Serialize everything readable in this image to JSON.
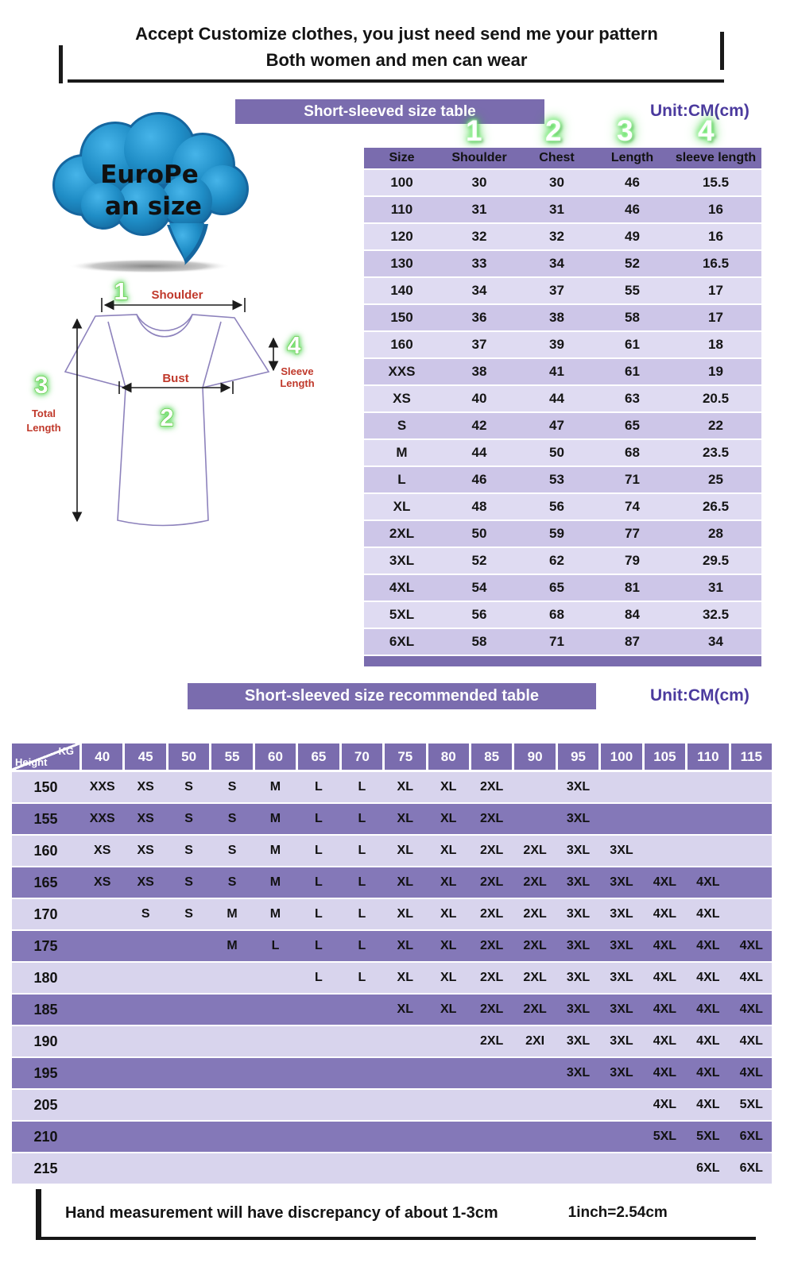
{
  "colors": {
    "purple": "#7a6cae",
    "row_light": "#dfdbf2",
    "row_mid": "#cdc6e8",
    "rec_light": "#d8d4ed",
    "rec_dark": "#8478b8",
    "unit_text": "#4b3a9e",
    "label_red": "#c0392b",
    "cloud_blue": "#1f8dc6"
  },
  "header": {
    "line1": "Accept Customize clothes, you just need send me your pattern",
    "line2": "Both women and men can wear"
  },
  "cloud": {
    "line1": "EuroPe",
    "line2": "an  size"
  },
  "size_table": {
    "banner": "Short-sleeved size  table",
    "unit": "Unit:CM(cm)",
    "column_numbers": [
      "1",
      "2",
      "3",
      "4"
    ],
    "columns": [
      "Size",
      "Shoulder",
      "Chest",
      "Length",
      "sleeve length"
    ],
    "rows": [
      [
        "100",
        "30",
        "30",
        "46",
        "15.5"
      ],
      [
        "110",
        "31",
        "31",
        "46",
        "16"
      ],
      [
        "120",
        "32",
        "32",
        "49",
        "16"
      ],
      [
        "130",
        "33",
        "34",
        "52",
        "16.5"
      ],
      [
        "140",
        "34",
        "37",
        "55",
        "17"
      ],
      [
        "150",
        "36",
        "38",
        "58",
        "17"
      ],
      [
        "160",
        "37",
        "39",
        "61",
        "18"
      ],
      [
        "XXS",
        "38",
        "41",
        "61",
        "19"
      ],
      [
        "XS",
        "40",
        "44",
        "63",
        "20.5"
      ],
      [
        "S",
        "42",
        "47",
        "65",
        "22"
      ],
      [
        "M",
        "44",
        "50",
        "68",
        "23.5"
      ],
      [
        "L",
        "46",
        "53",
        "71",
        "25"
      ],
      [
        "XL",
        "48",
        "56",
        "74",
        "26.5"
      ],
      [
        "2XL",
        "50",
        "59",
        "77",
        "28"
      ],
      [
        "3XL",
        "52",
        "62",
        "79",
        "29.5"
      ],
      [
        "4XL",
        "54",
        "65",
        "81",
        "31"
      ],
      [
        "5XL",
        "56",
        "68",
        "84",
        "32.5"
      ],
      [
        "6XL",
        "58",
        "71",
        "87",
        "34"
      ]
    ]
  },
  "diagram": {
    "num1": "1",
    "num2": "2",
    "num3": "3",
    "num4": "4",
    "shoulder_label": "Shoulder",
    "bust_label": "Bust",
    "total_label_1": "Total",
    "total_label_2": "Length",
    "sleeve_label_1": "Sleeve",
    "sleeve_label_2": "Length"
  },
  "rec_table": {
    "banner": "Short-sleeved size recommended table",
    "unit": "Unit:CM(cm)",
    "corner_top": "KG",
    "corner_bottom": "Height",
    "weights": [
      "40",
      "45",
      "50",
      "55",
      "60",
      "65",
      "70",
      "75",
      "80",
      "85",
      "90",
      "95",
      "100",
      "105",
      "110",
      "115"
    ],
    "rows": [
      {
        "height": "150",
        "cells": [
          "XXS",
          "XS",
          "S",
          "S",
          "M",
          "L",
          "L",
          "XL",
          "XL",
          "2XL",
          "",
          "3XL",
          "",
          "",
          "",
          ""
        ]
      },
      {
        "height": "155",
        "cells": [
          "XXS",
          "XS",
          "S",
          "S",
          "M",
          "L",
          "L",
          "XL",
          "XL",
          "2XL",
          "",
          "3XL",
          "",
          "",
          "",
          ""
        ]
      },
      {
        "height": "160",
        "cells": [
          "XS",
          "XS",
          "S",
          "S",
          "M",
          "L",
          "L",
          "XL",
          "XL",
          "2XL",
          "2XL",
          "3XL",
          "3XL",
          "",
          "",
          ""
        ]
      },
      {
        "height": "165",
        "cells": [
          "XS",
          "XS",
          "S",
          "S",
          "M",
          "L",
          "L",
          "XL",
          "XL",
          "2XL",
          "2XL",
          "3XL",
          "3XL",
          "4XL",
          "4XL",
          ""
        ]
      },
      {
        "height": "170",
        "cells": [
          "",
          "S",
          "S",
          "M",
          "M",
          "L",
          "L",
          "XL",
          "XL",
          "2XL",
          "2XL",
          "3XL",
          "3XL",
          "4XL",
          "4XL",
          ""
        ]
      },
      {
        "height": "175",
        "cells": [
          "",
          "",
          "",
          "M",
          "L",
          "L",
          "L",
          "XL",
          "XL",
          "2XL",
          "2XL",
          "3XL",
          "3XL",
          "4XL",
          "4XL",
          "4XL"
        ]
      },
      {
        "height": "180",
        "cells": [
          "",
          "",
          "",
          "",
          "",
          "L",
          "L",
          "XL",
          "XL",
          "2XL",
          "2XL",
          "3XL",
          "3XL",
          "4XL",
          "4XL",
          "4XL"
        ]
      },
      {
        "height": "185",
        "cells": [
          "",
          "",
          "",
          "",
          "",
          "",
          "",
          "XL",
          "XL",
          "2XL",
          "2XL",
          "3XL",
          "3XL",
          "4XL",
          "4XL",
          "4XL"
        ]
      },
      {
        "height": "190",
        "cells": [
          "",
          "",
          "",
          "",
          "",
          "",
          "",
          "",
          "",
          "2XL",
          "2XI",
          "3XL",
          "3XL",
          "4XL",
          "4XL",
          "4XL"
        ]
      },
      {
        "height": "195",
        "cells": [
          "",
          "",
          "",
          "",
          "",
          "",
          "",
          "",
          "",
          "",
          "",
          "3XL",
          "3XL",
          "4XL",
          "4XL",
          "4XL"
        ]
      },
      {
        "height": "205",
        "cells": [
          "",
          "",
          "",
          "",
          "",
          "",
          "",
          "",
          "",
          "",
          "",
          "",
          "",
          "4XL",
          "4XL",
          "5XL"
        ]
      },
      {
        "height": "210",
        "cells": [
          "",
          "",
          "",
          "",
          "",
          "",
          "",
          "",
          "",
          "",
          "",
          "",
          "",
          "5XL",
          "5XL",
          "6XL"
        ]
      },
      {
        "height": "215",
        "cells": [
          "",
          "",
          "",
          "",
          "",
          "",
          "",
          "",
          "",
          "",
          "",
          "",
          "",
          "",
          "6XL",
          "6XL"
        ]
      }
    ]
  },
  "footer": {
    "text": "Hand measurement will have discrepancy of about  1-3cm",
    "note": "1inch=2.54cm"
  }
}
